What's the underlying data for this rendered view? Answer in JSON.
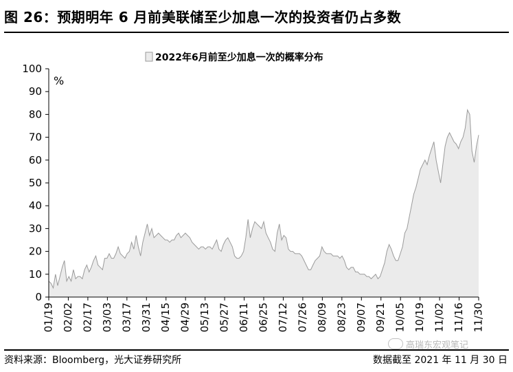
{
  "header": {
    "title": "图 26：预期明年 6 月前美联储至少加息一次的投资者仍占多数"
  },
  "footer": {
    "source": "资料来源：Bloomberg，光大证券研究所",
    "as_of": "数据截至 2021 年 11 月 30 日",
    "watermark": "高瑞东宏观笔记"
  },
  "colors": {
    "area_fill": "#ebebeb",
    "area_stroke": "#9a9a9a",
    "axis": "#000000"
  },
  "chart_data": {
    "type": "area",
    "legend": {
      "label": "2022年6月前至少加息一次的概率分布",
      "position": "top-center"
    },
    "ylabel": "%",
    "ylim": [
      0,
      100
    ],
    "yticks": [
      0,
      10,
      20,
      30,
      40,
      50,
      60,
      70,
      80,
      90,
      100
    ],
    "xticks": [
      "01/19",
      "02/02",
      "02/17",
      "03/03",
      "03/17",
      "03/31",
      "04/15",
      "04/29",
      "05/13",
      "05/27",
      "06/11",
      "06/25",
      "07/12",
      "07/26",
      "08/09",
      "08/23",
      "09/07",
      "09/21",
      "10/05",
      "10/19",
      "11/02",
      "11/16",
      "11/30"
    ],
    "grid": false,
    "series": [
      {
        "values": [
          7,
          6,
          4,
          10,
          5,
          9,
          13,
          16,
          7,
          9,
          7,
          12,
          8,
          9,
          9,
          8,
          12,
          14,
          11,
          13,
          16,
          18,
          14,
          13,
          12,
          17,
          17,
          19,
          17,
          17,
          19,
          22,
          19,
          18,
          17,
          19,
          20,
          24,
          21,
          27,
          22,
          18,
          24,
          28,
          32,
          27,
          30,
          26,
          27,
          28,
          27,
          26,
          25,
          25,
          24,
          25,
          25,
          27,
          28,
          26,
          27,
          28,
          27,
          26,
          24,
          23,
          22,
          21,
          22,
          22,
          21,
          22,
          22,
          21,
          23,
          25,
          21,
          20,
          23,
          25,
          26,
          24,
          22,
          18,
          17,
          17,
          18,
          20,
          26,
          34,
          26,
          30,
          33,
          32,
          31,
          30,
          33,
          28,
          26,
          24,
          21,
          20,
          28,
          32,
          25,
          27,
          26,
          21,
          20,
          20,
          19,
          19,
          19,
          18,
          16,
          14,
          12,
          12,
          14,
          16,
          17,
          18,
          22,
          20,
          19,
          19,
          19,
          18,
          18,
          18,
          17,
          18,
          16,
          13,
          12,
          13,
          13,
          11,
          11,
          10,
          10,
          10,
          9,
          9,
          8,
          9,
          10,
          8,
          9,
          12,
          15,
          20,
          23,
          21,
          18,
          16,
          16,
          19,
          22,
          28,
          30,
          35,
          40,
          45,
          48,
          52,
          56,
          58,
          60,
          58,
          62,
          65,
          68,
          60,
          55,
          50,
          58,
          66,
          70,
          72,
          70,
          68,
          67,
          65,
          68,
          70,
          74,
          82,
          80,
          64,
          59,
          66,
          71
        ]
      }
    ]
  }
}
